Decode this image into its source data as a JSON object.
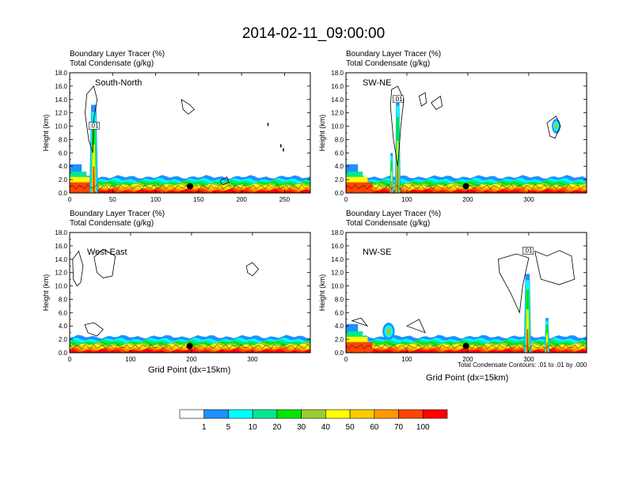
{
  "title": "2014-02-11_09:00:00",
  "panel_subtitle_1": "Boundary Layer Tracer   (%)",
  "panel_subtitle_2": "Total Condensate   (g/kg)",
  "ylabel": "Height (km)",
  "xlabel": "Grid Point (dx=15km)",
  "contour_note": "Total Condensate Contours: .01 to .01 by .000",
  "colors": {
    "c1": "#ffffff",
    "c2": "#1e90ff",
    "c3": "#00ffff",
    "c4": "#00e890",
    "c5": "#00e600",
    "c6": "#9acd32",
    "c7": "#ffff00",
    "c8": "#ffcc00",
    "c9": "#ff9900",
    "c10": "#ff4500",
    "c11": "#ff0000"
  },
  "chart_data": [
    {
      "type": "heatmap",
      "name": "South-North",
      "xticks": [
        0,
        50,
        100,
        150,
        200,
        250
      ],
      "xlim": [
        0,
        280
      ],
      "yticks": [
        "0.0",
        "2.0",
        "4.0",
        "6.0",
        "8.0",
        "10.0",
        "12.0",
        "14.0",
        "16.0",
        "18.0"
      ],
      "ylim": [
        0,
        18
      ],
      "center_x": 140,
      "contour_label": ".01"
    },
    {
      "type": "heatmap",
      "name": "SW-NE",
      "xticks": [
        0,
        100,
        200,
        300
      ],
      "xlim": [
        0,
        395
      ],
      "yticks": [
        "0.0",
        "2.0",
        "4.0",
        "6.0",
        "8.0",
        "10.0",
        "12.0",
        "14.0",
        "16.0",
        "18.0"
      ],
      "ylim": [
        0,
        18
      ],
      "center_x": 197,
      "contour_label": ".01"
    },
    {
      "type": "heatmap",
      "name": "West-East",
      "xticks": [
        0,
        100,
        200,
        300
      ],
      "xlim": [
        0,
        395
      ],
      "yticks": [
        "0.0",
        "2.0",
        "4.0",
        "6.0",
        "8.0",
        "10.0",
        "12.0",
        "14.0",
        "16.0",
        "18.0"
      ],
      "ylim": [
        0,
        18
      ],
      "center_x": 197
    },
    {
      "type": "heatmap",
      "name": "NW-SE",
      "xticks": [
        0,
        100,
        200,
        300
      ],
      "xlim": [
        0,
        395
      ],
      "yticks": [
        "0.0",
        "2.0",
        "4.0",
        "6.0",
        "8.0",
        "10.0",
        "12.0",
        "14.0",
        "16.0",
        "18.0"
      ],
      "ylim": [
        0,
        18
      ],
      "center_x": 197,
      "contour_label": ".01"
    }
  ],
  "colorbar": {
    "labels": [
      "1",
      "5",
      "10",
      "20",
      "30",
      "40",
      "50",
      "60",
      "70",
      "100"
    ],
    "colors": [
      "#ffffff",
      "#1e90ff",
      "#00ffff",
      "#00e890",
      "#00e600",
      "#9acd32",
      "#ffff00",
      "#ffcc00",
      "#ff9900",
      "#ff4500",
      "#ff0000"
    ]
  }
}
